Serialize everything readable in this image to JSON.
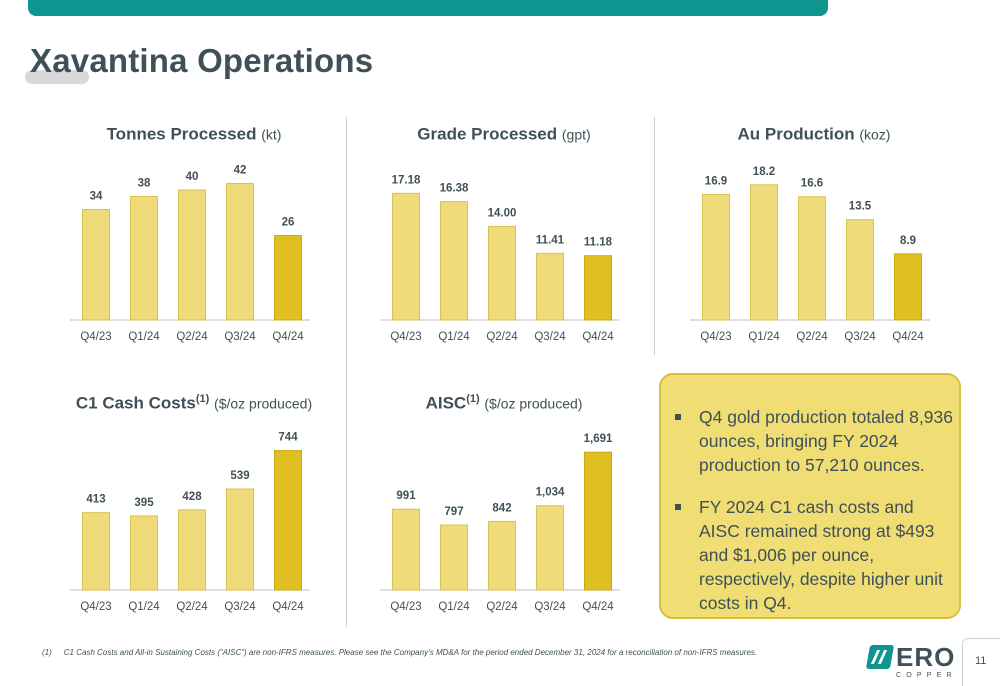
{
  "page": {
    "title": "Xavantina Operations",
    "page_number": "11"
  },
  "colors": {
    "bar": "#efdb7a",
    "bar_stroke": "#d9c24f",
    "bar_highlight": "#e0bf22",
    "bar_highlight_stroke": "#c9a814",
    "teal": "#0f9590",
    "text": "#3f5157"
  },
  "chart_data": [
    {
      "id": "tonnes",
      "type": "bar",
      "title": "Tonnes Processed",
      "unit": "(kt)",
      "sup": "",
      "categories": [
        "Q4/23",
        "Q1/24",
        "Q2/24",
        "Q3/24",
        "Q4/24"
      ],
      "values": [
        34,
        38,
        40,
        42,
        26
      ],
      "labels": [
        "34",
        "38",
        "40",
        "42",
        "26"
      ],
      "highlight_index": 4,
      "ylim": [
        0,
        48
      ]
    },
    {
      "id": "grade",
      "type": "bar",
      "title": "Grade Processed",
      "unit": "(gpt)",
      "sup": "",
      "categories": [
        "Q4/23",
        "Q1/24",
        "Q2/24",
        "Q3/24",
        "Q4/24"
      ],
      "values": [
        17.18,
        16.38,
        14.0,
        11.41,
        11.18
      ],
      "labels": [
        "17.18",
        "16.38",
        "14.00",
        "11.41",
        "11.18"
      ],
      "highlight_index": 4,
      "ylim": [
        5,
        20
      ]
    },
    {
      "id": "au",
      "type": "bar",
      "title": "Au Production",
      "unit": "(koz)",
      "sup": "",
      "categories": [
        "Q4/23",
        "Q1/24",
        "Q2/24",
        "Q3/24",
        "Q4/24"
      ],
      "values": [
        16.9,
        18.2,
        16.6,
        13.5,
        8.9
      ],
      "labels": [
        "16.9",
        "18.2",
        "16.6",
        "13.5",
        "8.9"
      ],
      "highlight_index": 4,
      "ylim": [
        0,
        21
      ]
    },
    {
      "id": "c1",
      "type": "bar",
      "title": "C1 Cash Costs",
      "unit": "($/oz produced)",
      "sup": "(1)",
      "categories": [
        "Q4/23",
        "Q1/24",
        "Q2/24",
        "Q3/24",
        "Q4/24"
      ],
      "values": [
        413,
        395,
        428,
        539,
        744
      ],
      "labels": [
        "413",
        "395",
        "428",
        "539",
        "744"
      ],
      "highlight_index": 4,
      "ylim": [
        0,
        870
      ]
    },
    {
      "id": "aisc",
      "type": "bar",
      "title": "AISC",
      "unit": "($/oz produced)",
      "sup": "(1)",
      "categories": [
        "Q4/23",
        "Q1/24",
        "Q2/24",
        "Q3/24",
        "Q4/24"
      ],
      "values": [
        991,
        797,
        842,
        1034,
        1691
      ],
      "labels": [
        "991",
        "797",
        "842",
        "1,034",
        "1,691"
      ],
      "highlight_index": 4,
      "ylim": [
        0,
        2000
      ]
    }
  ],
  "callout": {
    "bullets": [
      "Q4 gold production totaled 8,936 ounces, bringing FY 2024 production to 57,210 ounces.",
      "FY 2024 C1 cash costs and AISC remained strong at $493 and $1,006 per ounce, respectively, despite higher unit costs in Q4."
    ]
  },
  "footnote": {
    "mark": "(1)",
    "text": "C1 Cash Costs and All-in Sustaining Costs (“AISC”) are non-IFRS measures. Please see the Company’s MD&A for the period ended December 31, 2024 for a reconciliation of non-IFRS measures."
  },
  "logo": {
    "word": "ERO",
    "sub": "COPPER"
  }
}
